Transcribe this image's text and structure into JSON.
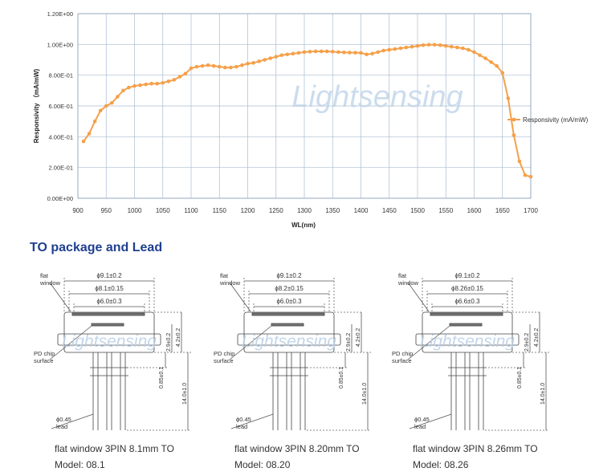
{
  "chart_data": {
    "type": "line",
    "xlabel": "WL(nm)",
    "ylabel": "Responsivity （mA/mW)",
    "xlim": [
      900,
      1700
    ],
    "ylim": [
      0,
      1.2
    ],
    "x_ticks": [
      900,
      950,
      1000,
      1050,
      1100,
      1150,
      1200,
      1250,
      1300,
      1350,
      1400,
      1450,
      1500,
      1550,
      1600,
      1650,
      1700
    ],
    "x_tick_labels": [
      "900",
      "950",
      "1000",
      "1050",
      "1100",
      "1150",
      "1200",
      "1250",
      "1300",
      "1350",
      "1400",
      "1450",
      "1500",
      "1550",
      "1600",
      "1650",
      "1700"
    ],
    "y_ticks": [
      0,
      0.2,
      0.4,
      0.6,
      0.8,
      1.0,
      1.2
    ],
    "y_tick_labels": [
      "0.00E+00",
      "2.00E-01",
      "4.00E-01",
      "6.00E-01",
      "8.00E-01",
      "1.00E+00",
      "1.20E+00"
    ],
    "grid": true,
    "legend_position": "right",
    "color": "#f5a04a",
    "watermark": "Lightsensing",
    "series": [
      {
        "name": "Responsivity  (mA/mW)",
        "x": [
          910,
          920,
          930,
          940,
          950,
          960,
          970,
          980,
          990,
          1000,
          1010,
          1020,
          1030,
          1040,
          1050,
          1060,
          1070,
          1080,
          1090,
          1100,
          1110,
          1120,
          1130,
          1140,
          1150,
          1160,
          1170,
          1180,
          1190,
          1200,
          1210,
          1220,
          1230,
          1240,
          1250,
          1260,
          1270,
          1280,
          1290,
          1300,
          1310,
          1320,
          1330,
          1340,
          1350,
          1360,
          1370,
          1380,
          1390,
          1400,
          1410,
          1420,
          1430,
          1440,
          1450,
          1460,
          1470,
          1480,
          1490,
          1500,
          1510,
          1520,
          1530,
          1540,
          1550,
          1560,
          1570,
          1580,
          1590,
          1600,
          1610,
          1620,
          1630,
          1640,
          1650,
          1660,
          1670,
          1680,
          1690,
          1700
        ],
        "values": [
          0.37,
          0.42,
          0.5,
          0.57,
          0.6,
          0.62,
          0.66,
          0.7,
          0.72,
          0.73,
          0.735,
          0.74,
          0.745,
          0.745,
          0.75,
          0.76,
          0.77,
          0.79,
          0.81,
          0.845,
          0.855,
          0.86,
          0.865,
          0.86,
          0.855,
          0.85,
          0.85,
          0.855,
          0.865,
          0.875,
          0.88,
          0.89,
          0.9,
          0.91,
          0.92,
          0.93,
          0.935,
          0.94,
          0.945,
          0.95,
          0.953,
          0.955,
          0.955,
          0.955,
          0.953,
          0.95,
          0.948,
          0.947,
          0.946,
          0.945,
          0.935,
          0.94,
          0.95,
          0.96,
          0.965,
          0.97,
          0.975,
          0.98,
          0.985,
          0.99,
          0.995,
          0.998,
          0.998,
          0.995,
          0.99,
          0.985,
          0.98,
          0.975,
          0.965,
          0.95,
          0.93,
          0.91,
          0.885,
          0.86,
          0.815,
          0.65,
          0.41,
          0.24,
          0.15,
          0.14
        ]
      }
    ]
  },
  "section": {
    "title": "TO package and Lead"
  },
  "packages": [
    {
      "caption": "flat window 3PIN 8.1mm TO",
      "model": "Model: 08.1",
      "dims": {
        "outer": "ϕ9.1±0.2",
        "window": "ϕ8.1±0.15",
        "inner": "ϕ6.0±0.3"
      }
    },
    {
      "caption": "flat window 3PIN 8.20mm TO",
      "model": "Model: 08.20",
      "dims": {
        "outer": "ϕ9.1±0.2",
        "window": "ϕ8.2±0.15",
        "inner": "ϕ6.0±0.3"
      }
    },
    {
      "caption": "flat window 3PIN 8.26mm TO",
      "model": "Model: 08.26",
      "dims": {
        "outer": "ϕ9.1±0.2",
        "window": "ϕ8.26±0.15",
        "inner": "ϕ6.6±0.3"
      }
    }
  ],
  "drawing_labels": {
    "flat_window": [
      "flat",
      "window"
    ],
    "pd_chip": [
      "PD chip",
      "surface"
    ],
    "lead": [
      "ϕ0.45",
      "lead"
    ],
    "dim_small": "2.9±0.2",
    "dim_height": "4.2±0.2",
    "dim_gap": "0.85±0.1",
    "dim_lead": "14.0±1.0",
    "watermark": "Lightsensing"
  }
}
